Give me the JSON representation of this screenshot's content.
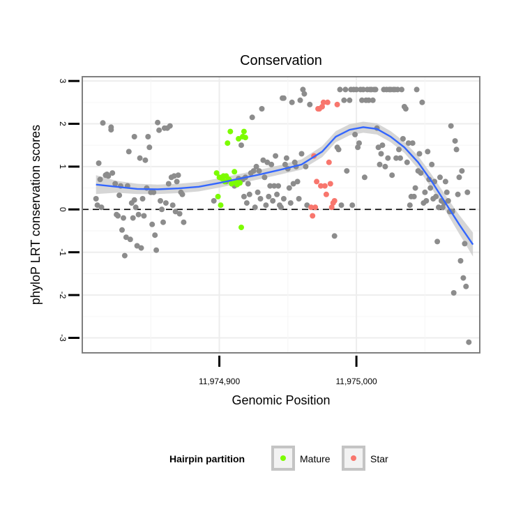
{
  "chart_data": {
    "type": "scatter",
    "title": "Conservation",
    "xlabel": "Genomic Position",
    "ylabel": "phyloP LRT conservation scores",
    "xlim": [
      11974800,
      11975090
    ],
    "ylim": [
      -3.35,
      3.1
    ],
    "x_ticks": [
      11974900,
      11975000
    ],
    "x_tick_labels": [
      "11,974,900",
      "11,975,000"
    ],
    "y_ticks": [
      -3,
      -2,
      -1,
      0,
      1,
      2,
      3
    ],
    "y_tick_labels": [
      "-3",
      "-2",
      "-1",
      "0",
      "1",
      "2",
      "3"
    ],
    "grid": true,
    "reference_line": {
      "y": 0,
      "style": "dashed"
    },
    "legend": {
      "title": "Hairpin partition",
      "position": "bottom",
      "entries": [
        {
          "label": "Mature",
          "color": "#7cfc00"
        },
        {
          "label": "Star",
          "color": "#f8766d"
        }
      ]
    },
    "colors": {
      "other": "#8c8c8c",
      "mature": "#7cfc00",
      "star": "#f8766d",
      "smooth": "#3366ff",
      "ribbon": "#c8c8c8"
    },
    "series": [
      {
        "name": "",
        "group": "other",
        "points": [
          [
            11974810,
            0.25
          ],
          [
            11974811,
            0.1
          ],
          [
            11974812,
            1.08
          ],
          [
            11974813,
            0.7
          ],
          [
            11974814,
            0.05
          ],
          [
            11974815,
            2.02
          ],
          [
            11974817,
            0.8
          ],
          [
            11974818,
            0.82
          ],
          [
            11974819,
            0.78
          ],
          [
            11974821,
            1.92
          ],
          [
            11974821,
            1.86
          ],
          [
            11974822,
            0.85
          ],
          [
            11974824,
            0.6
          ],
          [
            11974825,
            -0.12
          ],
          [
            11974826,
            -0.15
          ],
          [
            11974827,
            0.33
          ],
          [
            11974828,
            0.55
          ],
          [
            11974829,
            -0.48
          ],
          [
            11974830,
            -0.2
          ],
          [
            11974831,
            -1.08
          ],
          [
            11974832,
            -0.65
          ],
          [
            11974833,
            0.55
          ],
          [
            11974834,
            1.35
          ],
          [
            11974835,
            -0.7
          ],
          [
            11974836,
            0.15
          ],
          [
            11974837,
            -0.2
          ],
          [
            11974838,
            1.7
          ],
          [
            11974838,
            0.22
          ],
          [
            11974839,
            0.05
          ],
          [
            11974840,
            -0.85
          ],
          [
            11974841,
            -0.12
          ],
          [
            11974842,
            1.2
          ],
          [
            11974843,
            -0.9
          ],
          [
            11974844,
            0.25
          ],
          [
            11974845,
            -0.15
          ],
          [
            11974846,
            1.15
          ],
          [
            11974847,
            0.5
          ],
          [
            11974848,
            1.7
          ],
          [
            11974849,
            1.45
          ],
          [
            11974850,
            0.4
          ],
          [
            11974851,
            -0.35
          ],
          [
            11974852,
            0.4
          ],
          [
            11974853,
            -0.6
          ],
          [
            11974854,
            -0.95
          ],
          [
            11974855,
            2.03
          ],
          [
            11974856,
            1.85
          ],
          [
            11974857,
            0.2
          ],
          [
            11974858,
            0.0
          ],
          [
            11974859,
            -0.3
          ],
          [
            11974860,
            1.9
          ],
          [
            11974861,
            0.15
          ],
          [
            11974862,
            1.9
          ],
          [
            11974863,
            0.6
          ],
          [
            11974864,
            1.95
          ],
          [
            11974865,
            0.75
          ],
          [
            11974866,
            0.1
          ],
          [
            11974867,
            0.78
          ],
          [
            11974868,
            -0.05
          ],
          [
            11974869,
            0.65
          ],
          [
            11974870,
            0.8
          ],
          [
            11974871,
            -0.1
          ],
          [
            11974872,
            0.4
          ],
          [
            11974873,
            0.35
          ],
          [
            11974874,
            -0.3
          ],
          [
            11974896,
            0.2
          ],
          [
            11974905,
            0.65
          ],
          [
            11974911,
            0.55
          ],
          [
            11974914,
            0.72
          ],
          [
            11974916,
            1.5
          ],
          [
            11974917,
            0.7
          ],
          [
            11974918,
            0.3
          ],
          [
            11974919,
            0.75
          ],
          [
            11974920,
            0.15
          ],
          [
            11974921,
            0.6
          ],
          [
            11974922,
            0.35
          ],
          [
            11974923,
            0.85
          ],
          [
            11974924,
            2.15
          ],
          [
            11974925,
            0.9
          ],
          [
            11974926,
            0.05
          ],
          [
            11974927,
            1.0
          ],
          [
            11974928,
            0.4
          ],
          [
            11974929,
            0.9
          ],
          [
            11974930,
            0.25
          ],
          [
            11974931,
            2.35
          ],
          [
            11974932,
            1.15
          ],
          [
            11974933,
            0.75
          ],
          [
            11974934,
            0.1
          ],
          [
            11974935,
            1.1
          ],
          [
            11974936,
            0.3
          ],
          [
            11974937,
            0.55
          ],
          [
            11974938,
            1.05
          ],
          [
            11974939,
            0.2
          ],
          [
            11974940,
            0.55
          ],
          [
            11974941,
            1.25
          ],
          [
            11974942,
            0.35
          ],
          [
            11974943,
            0.55
          ],
          [
            11974944,
            0.1
          ],
          [
            11974945,
            0.05
          ],
          [
            11974946,
            2.6
          ],
          [
            11974947,
            2.6
          ],
          [
            11974947,
            0.25
          ],
          [
            11974948,
            1.05
          ],
          [
            11974949,
            1.2
          ],
          [
            11974950,
            0.95
          ],
          [
            11974951,
            0.5
          ],
          [
            11974952,
            0.15
          ],
          [
            11974953,
            2.5
          ],
          [
            11974954,
            0.6
          ],
          [
            11974955,
            1.1
          ],
          [
            11974956,
            1.0
          ],
          [
            11974957,
            0.65
          ],
          [
            11974958,
            0.25
          ],
          [
            11974959,
            2.55
          ],
          [
            11974960,
            1.3
          ],
          [
            11974961,
            2.8
          ],
          [
            11974962,
            2.7
          ],
          [
            11974963,
            1.0
          ],
          [
            11974964,
            0.1
          ],
          [
            11974966,
            2.45
          ],
          [
            11974984,
            -0.62
          ],
          [
            11974986,
            1.45
          ],
          [
            11974987,
            1.4
          ],
          [
            11974988,
            2.8
          ],
          [
            11974989,
            0.1
          ],
          [
            11974991,
            2.55
          ],
          [
            11974992,
            2.8
          ],
          [
            11974993,
            0.9
          ],
          [
            11974995,
            2.55
          ],
          [
            11974996,
            2.8
          ],
          [
            11974997,
            0.1
          ],
          [
            11974998,
            2.8
          ],
          [
            11974999,
            1.75
          ],
          [
            11975000,
            2.8
          ],
          [
            11975001,
            1.45
          ],
          [
            11975002,
            1.55
          ],
          [
            11975003,
            2.8
          ],
          [
            11975004,
            2.55
          ],
          [
            11975005,
            2.8
          ],
          [
            11975006,
            0.75
          ],
          [
            11975007,
            2.55
          ],
          [
            11975008,
            2.8
          ],
          [
            11975009,
            2.55
          ],
          [
            11975010,
            2.8
          ],
          [
            11975011,
            2.8
          ],
          [
            11975012,
            2.55
          ],
          [
            11975013,
            2.8
          ],
          [
            11975014,
            2.8
          ],
          [
            11975015,
            1.9
          ],
          [
            11975016,
            1.45
          ],
          [
            11975017,
            1.05
          ],
          [
            11975018,
            1.3
          ],
          [
            11975019,
            1.5
          ],
          [
            11975020,
            2.8
          ],
          [
            11975021,
            1.0
          ],
          [
            11975022,
            2.8
          ],
          [
            11975023,
            1.2
          ],
          [
            11975024,
            2.8
          ],
          [
            11975025,
            2.8
          ],
          [
            11975026,
            0.8
          ],
          [
            11975027,
            2.8
          ],
          [
            11975028,
            2.8
          ],
          [
            11975029,
            1.2
          ],
          [
            11975030,
            2.8
          ],
          [
            11975031,
            1.4
          ],
          [
            11975032,
            1.2
          ],
          [
            11975033,
            2.8
          ],
          [
            11975034,
            1.65
          ],
          [
            11975035,
            2.4
          ],
          [
            11975036,
            2.35
          ],
          [
            11975037,
            1.1
          ],
          [
            11975038,
            1.55
          ],
          [
            11975039,
            0.1
          ],
          [
            11975040,
            0.3
          ],
          [
            11975041,
            1.55
          ],
          [
            11975042,
            0.3
          ],
          [
            11975043,
            0.5
          ],
          [
            11975044,
            2.8
          ],
          [
            11975045,
            0.9
          ],
          [
            11975046,
            1.3
          ],
          [
            11975047,
            0.85
          ],
          [
            11975048,
            2.5
          ],
          [
            11975049,
            0.15
          ],
          [
            11975050,
            0.4
          ],
          [
            11975051,
            0.2
          ],
          [
            11975052,
            1.35
          ],
          [
            11975053,
            0.7
          ],
          [
            11975054,
            0.5
          ],
          [
            11975055,
            1.05
          ],
          [
            11975056,
            0.25
          ],
          [
            11975057,
            0.65
          ],
          [
            11975058,
            0.3
          ],
          [
            11975059,
            -0.75
          ],
          [
            11975060,
            0.05
          ],
          [
            11975061,
            0.75
          ],
          [
            11975062,
            0.2
          ],
          [
            11975063,
            0.05
          ],
          [
            11975064,
            0.15
          ],
          [
            11975065,
            0.65
          ],
          [
            11975066,
            0.4
          ],
          [
            11975067,
            0.2
          ],
          [
            11975068,
            -0.05
          ],
          [
            11975069,
            1.95
          ],
          [
            11975070,
            -0.05
          ],
          [
            11975071,
            -1.95
          ],
          [
            11975072,
            1.6
          ],
          [
            11975073,
            1.4
          ],
          [
            11975074,
            0.35
          ],
          [
            11975075,
            0.75
          ],
          [
            11975076,
            -1.2
          ],
          [
            11975077,
            0.9
          ],
          [
            11975078,
            -1.6
          ],
          [
            11975079,
            -0.8
          ],
          [
            11975080,
            -1.8
          ],
          [
            11975081,
            0.4
          ],
          [
            11975082,
            -3.1
          ]
        ]
      },
      {
        "name": "Mature",
        "group": "mature",
        "points": [
          [
            11974898,
            0.85
          ],
          [
            11974899,
            0.3
          ],
          [
            11974900,
            0.75
          ],
          [
            11974901,
            0.1
          ],
          [
            11974902,
            0.72
          ],
          [
            11974903,
            0.78
          ],
          [
            11974904,
            0.65
          ],
          [
            11974905,
            0.78
          ],
          [
            11974906,
            1.55
          ],
          [
            11974907,
            0.7
          ],
          [
            11974908,
            1.82
          ],
          [
            11974909,
            0.6
          ],
          [
            11974911,
            0.88
          ],
          [
            11974912,
            0.65
          ],
          [
            11974913,
            0.58
          ],
          [
            11974914,
            1.65
          ],
          [
            11974915,
            0.62
          ],
          [
            11974916,
            -0.42
          ],
          [
            11974917,
            1.7
          ],
          [
            11974918,
            1.82
          ],
          [
            11974919,
            1.68
          ]
        ]
      },
      {
        "name": "Star",
        "group": "star",
        "points": [
          [
            11974967,
            0.05
          ],
          [
            11974968,
            -0.15
          ],
          [
            11974969,
            1.25
          ],
          [
            11974970,
            0.05
          ],
          [
            11974971,
            0.65
          ],
          [
            11974972,
            2.35
          ],
          [
            11974973,
            2.35
          ],
          [
            11974974,
            0.55
          ],
          [
            11974975,
            2.4
          ],
          [
            11974976,
            2.5
          ],
          [
            11974977,
            0.55
          ],
          [
            11974978,
            0.35
          ],
          [
            11974979,
            2.5
          ],
          [
            11974980,
            1.1
          ],
          [
            11974981,
            0.6
          ],
          [
            11974982,
            0.05
          ],
          [
            11974983,
            0.15
          ],
          [
            11974984,
            0.2
          ],
          [
            11974986,
            2.45
          ]
        ]
      }
    ],
    "smooth": {
      "x": [
        11974810,
        11974825,
        11974840,
        11974855,
        11974870,
        11974885,
        11974900,
        11974915,
        11974930,
        11974945,
        11974960,
        11974975,
        11974985,
        11974995,
        11975005,
        11975015,
        11975025,
        11975035,
        11975045,
        11975055,
        11975065,
        11975075,
        11975085
      ],
      "y": [
        0.58,
        0.53,
        0.48,
        0.47,
        0.49,
        0.53,
        0.62,
        0.72,
        0.82,
        0.93,
        1.05,
        1.35,
        1.7,
        1.86,
        1.92,
        1.88,
        1.7,
        1.45,
        1.1,
        0.65,
        0.15,
        -0.35,
        -0.82
      ],
      "band": [
        0.22,
        0.14,
        0.12,
        0.11,
        0.11,
        0.11,
        0.11,
        0.11,
        0.11,
        0.11,
        0.12,
        0.13,
        0.13,
        0.13,
        0.13,
        0.13,
        0.13,
        0.13,
        0.15,
        0.16,
        0.18,
        0.22,
        0.28
      ]
    }
  }
}
